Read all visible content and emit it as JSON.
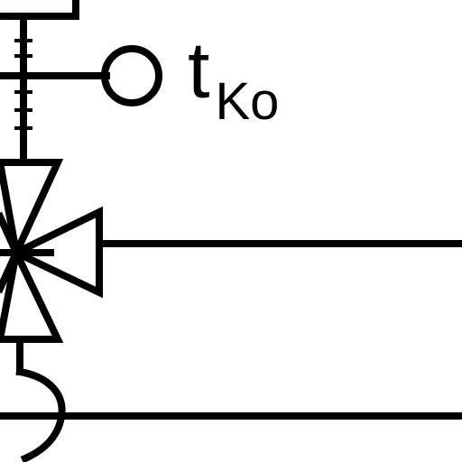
{
  "diagram": {
    "label": {
      "main": "t",
      "subscript": "Ko"
    },
    "stroke_color": "#000000",
    "background_color": "#ffffff"
  }
}
